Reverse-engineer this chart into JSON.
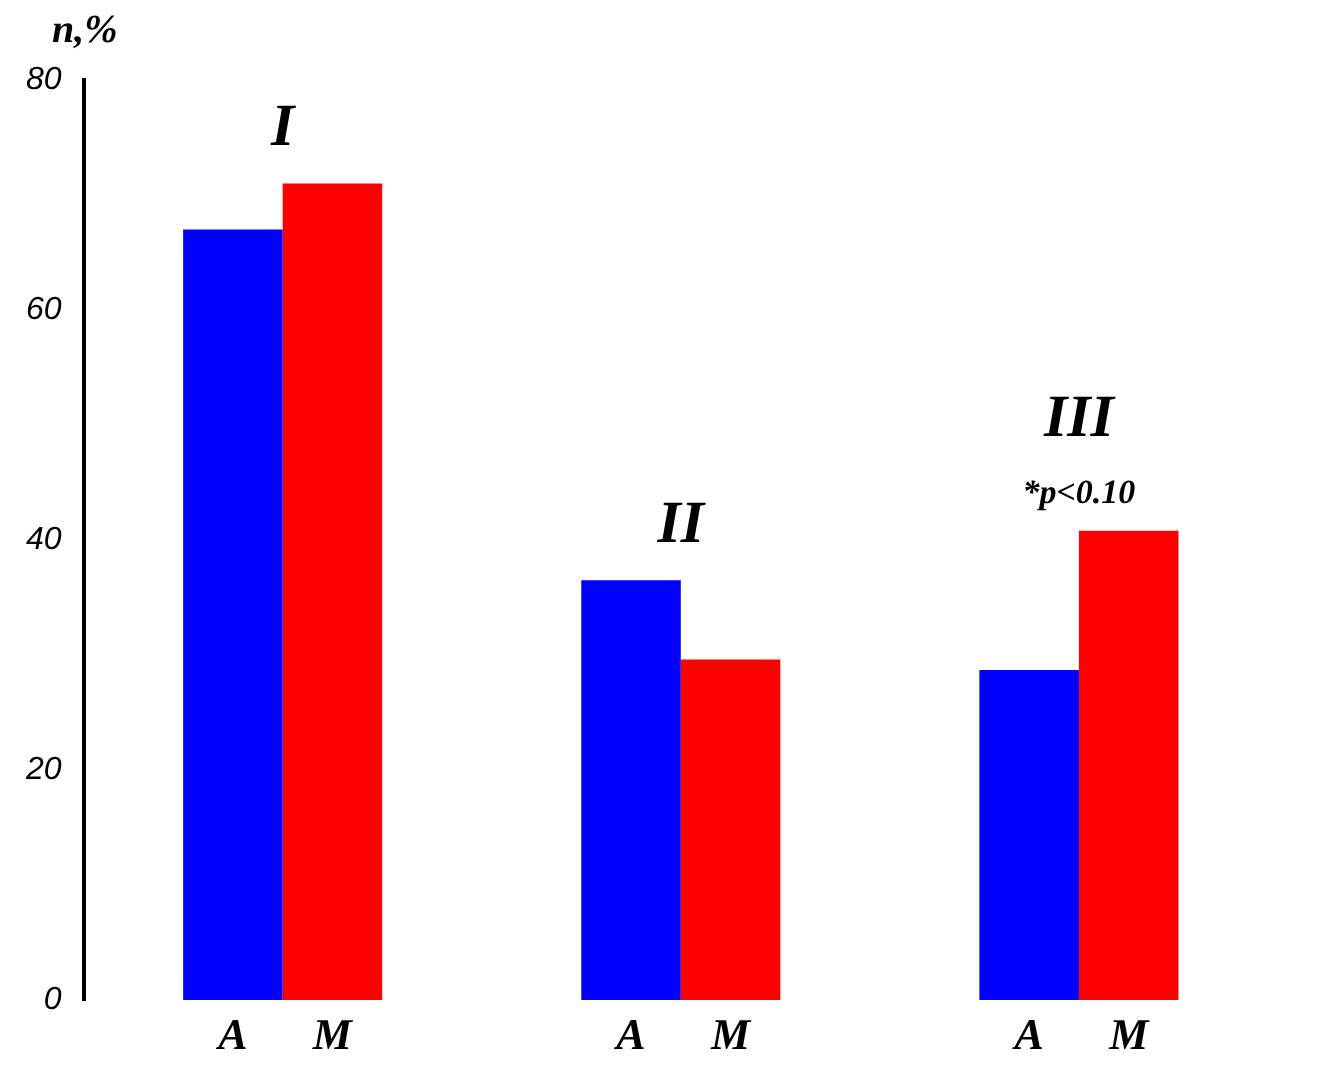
{
  "chart_data": {
    "type": "bar",
    "ylabel": "n,%",
    "categories": [
      "I",
      "II",
      "III"
    ],
    "series": [
      {
        "name": "A",
        "color": "#0000ff",
        "values": [
          67,
          36.5,
          28.7
        ]
      },
      {
        "name": "M",
        "color": "#ff0000",
        "values": [
          71,
          29.6,
          40.8
        ]
      }
    ],
    "ylim": [
      0,
      80
    ],
    "yticks": [
      0,
      20,
      40,
      60,
      80
    ],
    "grid": false,
    "legend": false,
    "annotations": [
      "*p<0.10"
    ]
  }
}
